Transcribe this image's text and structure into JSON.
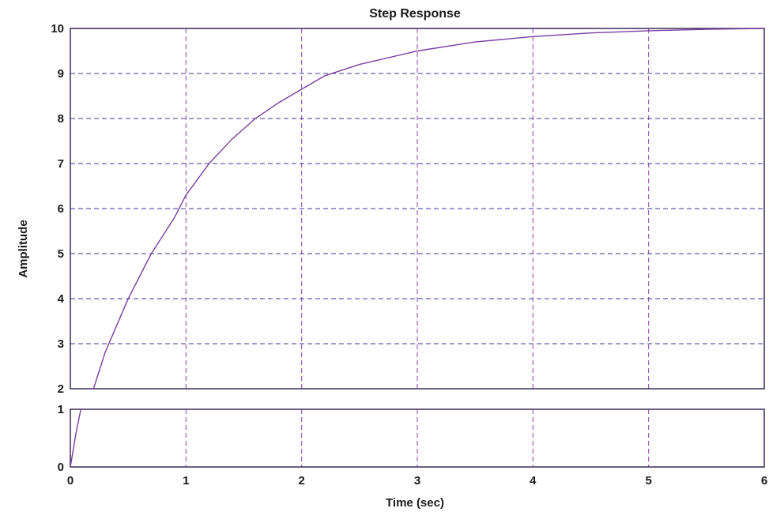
{
  "chart_data": {
    "type": "line",
    "title": "Step Response",
    "xlabel": "Time (sec)",
    "ylabel": "Amplitude",
    "xlim": [
      0,
      6
    ],
    "ylim": [
      0,
      10
    ],
    "y_axis_break": [
      1,
      2
    ],
    "x_ticks": [
      "0",
      "1",
      "2",
      "3",
      "4",
      "5",
      "6"
    ],
    "y_ticks": [
      "0",
      "1",
      "2",
      "3",
      "4",
      "5",
      "6",
      "7",
      "8",
      "9",
      "10"
    ],
    "grid": true,
    "series": [
      {
        "color": "#7a3fa0",
        "x": [
          0,
          0.05,
          0.1,
          0.2,
          0.3,
          0.4,
          0.5,
          0.6,
          0.7,
          0.8,
          0.9,
          1.0,
          1.2,
          1.4,
          1.6,
          1.8,
          2.0,
          2.2,
          2.5,
          3.0,
          3.5,
          4.0,
          4.5,
          5.0,
          5.5,
          6.0
        ],
        "y": [
          0,
          0.6,
          1.1,
          2.0,
          2.8,
          3.4,
          4.0,
          4.5,
          5.0,
          5.4,
          5.8,
          6.3,
          7.0,
          7.55,
          8.0,
          8.35,
          8.65,
          8.95,
          9.2,
          9.5,
          9.7,
          9.82,
          9.9,
          9.95,
          9.98,
          10.0
        ]
      }
    ],
    "colors": {
      "axes": "#3a2a5a",
      "grid_v": "#8a3fb5",
      "grid_h": "#3a3aa0",
      "text": "#1a1a1a"
    }
  }
}
